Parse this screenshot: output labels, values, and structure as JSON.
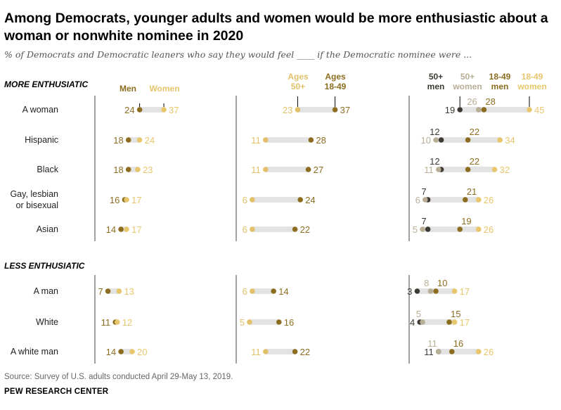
{
  "title": "Among Democrats, younger adults and women would be more enthusiastic about a woman or nonwhite nominee in 2020",
  "subtitle": "% of Democrats and Democratic leaners who say they would feel ____ if the Democratic nominee were ...",
  "source": "Source: Survey of U.S. adults conducted April 29-May 13, 2019.",
  "organization": "PEW RESEARCH CENTER",
  "colors": {
    "men": "#8c6d1f",
    "women": "#e8c66c",
    "age50": "#e2c06a",
    "age18": "#8c6d1f",
    "men50": "#3d3a33",
    "women50": "#b8ae95",
    "men18": "#8c6d1f",
    "women18": "#e8c66c",
    "track": "#e3e3e3",
    "axis": "#444444",
    "label": "#231f20"
  },
  "chart_data": {
    "type": "dot-plot",
    "sections": [
      "MORE ENTHUSIATIC",
      "LESS ENTHUSIATIC"
    ],
    "categories": [
      "A woman",
      "Hispanic",
      "Black",
      "Gay, lesbian or bisexual",
      "Asian",
      "A man",
      "White",
      "A white man"
    ],
    "panels": [
      {
        "series": [
          {
            "name": "Men",
            "values": [
              24,
              18,
              18,
              16,
              14,
              7,
              11,
              14
            ]
          },
          {
            "name": "Women",
            "values": [
              37,
              24,
              23,
              17,
              17,
              13,
              12,
              20
            ]
          }
        ]
      },
      {
        "series": [
          {
            "name": "Ages 50+",
            "values": [
              23,
              11,
              11,
              6,
              6,
              6,
              5,
              11
            ]
          },
          {
            "name": "Ages 18-49",
            "values": [
              37,
              28,
              27,
              24,
              22,
              14,
              16,
              22
            ]
          }
        ]
      },
      {
        "series": [
          {
            "name": "50+ men",
            "values": [
              19,
              12,
              12,
              7,
              7,
              3,
              4,
              11
            ]
          },
          {
            "name": "50+ women",
            "values": [
              26,
              10,
              11,
              6,
              5,
              8,
              5,
              11
            ]
          },
          {
            "name": "18-49 men",
            "values": [
              28,
              22,
              22,
              21,
              19,
              10,
              15,
              16
            ]
          },
          {
            "name": "18-49 women",
            "values": [
              45,
              34,
              32,
              26,
              26,
              17,
              17,
              26
            ]
          }
        ]
      }
    ]
  }
}
